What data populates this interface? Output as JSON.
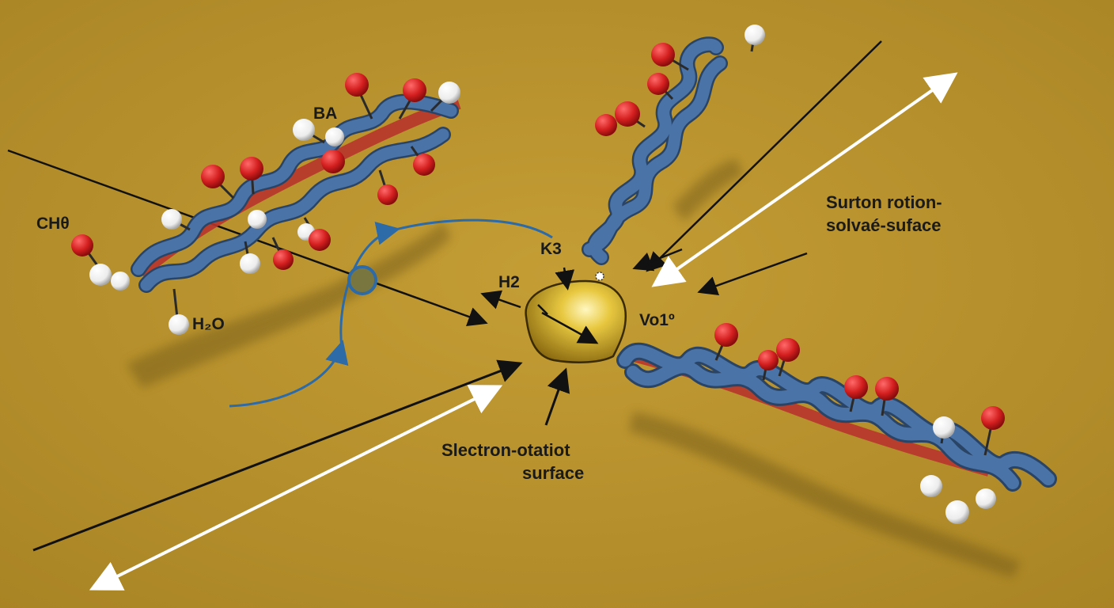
{
  "labels": {
    "ba": "BA",
    "ch": "CHθ",
    "h2o": "H₂O",
    "k3": "K3",
    "h2": "H2",
    "vo": "Vo1º",
    "surton_line1": "Surton rotion-",
    "surton_line2": "solvaé-suface",
    "slectron_line1": "Slectron-otatiot",
    "slectron_line2": "surface"
  },
  "colors": {
    "background": "#b8922e",
    "helix": "#4a74a8",
    "helix_edge": "#2a4466",
    "inner_strand": "#b8342c",
    "oxygen": "#d41f1f",
    "hydrogen": "#f2f2f2",
    "particle": "#e0c030",
    "arrow_dark": "#111111",
    "arrow_light": "#ffffff",
    "cycle_arrow": "#2d6aa8"
  }
}
